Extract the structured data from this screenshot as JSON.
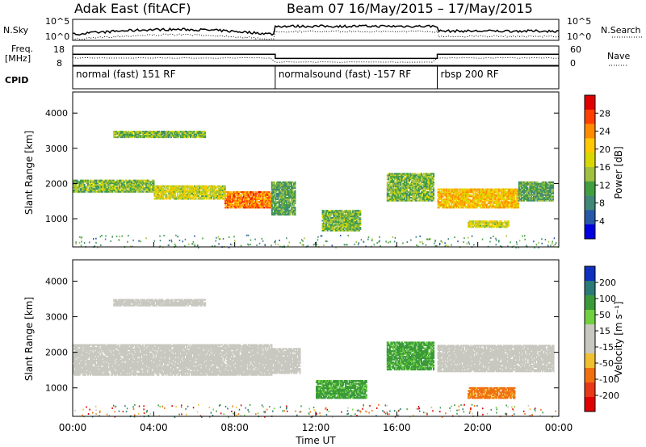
{
  "header": {
    "title_left": "Adak East (fitACF)",
    "title_right": "Beam 07  16/May/2015 – 17/May/2015"
  },
  "strips": {
    "nsky_label": "N.Sky",
    "nsky_ticks": [
      "10^5",
      "10^0"
    ],
    "nsearch_label": "N.Search",
    "nsearch_ticks": [
      "10^5",
      "10^0"
    ],
    "freq_label_line1": "Freq.",
    "freq_label_line2": "[MHz]",
    "freq_ticks": [
      "18",
      "8"
    ],
    "nave_label": "Nave",
    "nave_ticks": [
      "60",
      "0"
    ],
    "cpid_label": "CPID"
  },
  "modes": [
    {
      "label": "normal (fast) 151 RF",
      "start_hour": 0,
      "end_hour": 10
    },
    {
      "label": "normalsound (fast) -157 RF",
      "start_hour": 10,
      "end_hour": 18
    },
    {
      "label": "rbsp 200 RF",
      "start_hour": 18,
      "end_hour": 24
    }
  ],
  "panels": {
    "power": {
      "ylabel": "Slant Range [km]",
      "cbar_label": "Power [dB]",
      "cbar_ticks": [
        "28",
        "24",
        "20",
        "16",
        "12",
        "8",
        "4"
      ],
      "cbar_colors": [
        "#e00000",
        "#ff4000",
        "#ff8c00",
        "#ffc800",
        "#d8d800",
        "#a0c040",
        "#40a040",
        "#408878",
        "#2858a8",
        "#0000e0"
      ]
    },
    "velocity": {
      "ylabel": "Slant Range [km]",
      "cbar_label": "Velocity [m s⁻¹]",
      "cbar_ticks": [
        "200",
        "100",
        "50",
        "15",
        "-15",
        "-50",
        "-100",
        "-200"
      ],
      "cbar_colors": [
        "#1030c0",
        "#2a7a78",
        "#3a9a3a",
        "#70d040",
        "#c8c8c0",
        "#c8c8c0",
        "#f0c030",
        "#f07010",
        "#e83818",
        "#e00000"
      ]
    }
  },
  "xaxis": {
    "label": "Time UT",
    "ticks": [
      "00:00",
      "04:00",
      "08:00",
      "12:00",
      "16:00",
      "20:00",
      "00:00"
    ]
  },
  "chart_data": {
    "type": "heatmap",
    "title": "Adak East (fitACF)  Beam 07  16/May/2015 – 17/May/2015",
    "xlabel": "Time UT",
    "ylabel": "Slant Range [km]",
    "xlim_hours": [
      0,
      24
    ],
    "ylim_km": [
      200,
      4600
    ],
    "y_ticks": [
      1000,
      2000,
      3000,
      4000
    ],
    "freq_mhz_by_mode": [
      {
        "mode": "normal (fast) 151 RF",
        "freq": 14
      },
      {
        "mode": "normalsound (fast) -157 RF",
        "freq": 11
      },
      {
        "mode": "rbsp 200 RF",
        "freq": 14
      }
    ],
    "power_db_range": [
      0,
      30
    ],
    "velocity_range": [
      -200,
      200
    ],
    "power_bands": [
      {
        "t0": 0,
        "t1": 4,
        "r0": 1750,
        "r1": 2100,
        "db": 12
      },
      {
        "t0": 4,
        "t1": 7.5,
        "r0": 1550,
        "r1": 1950,
        "db": 16
      },
      {
        "t0": 7.5,
        "t1": 9.8,
        "r0": 1300,
        "r1": 1750,
        "db": 24
      },
      {
        "t0": 9.8,
        "t1": 11,
        "r0": 1100,
        "r1": 2050,
        "db": 10
      },
      {
        "t0": 12.3,
        "t1": 14.2,
        "r0": 650,
        "r1": 1250,
        "db": 12
      },
      {
        "t0": 15.5,
        "t1": 17.8,
        "r0": 1500,
        "r1": 2300,
        "db": 12
      },
      {
        "t0": 18,
        "t1": 22,
        "r0": 1300,
        "r1": 1850,
        "db": 20
      },
      {
        "t0": 19.5,
        "t1": 21.5,
        "r0": 750,
        "r1": 950,
        "db": 16
      },
      {
        "t0": 22,
        "t1": 23.7,
        "r0": 1500,
        "r1": 2050,
        "db": 10
      },
      {
        "t0": 2,
        "t1": 6.5,
        "r0": 3300,
        "r1": 3500,
        "db": 12
      }
    ],
    "velocity_bands": [
      {
        "t0": 0,
        "t1": 9.8,
        "r0": 1350,
        "r1": 2200,
        "v": 0
      },
      {
        "t0": 9.8,
        "t1": 11.2,
        "r0": 1400,
        "r1": 2100,
        "v": 0
      },
      {
        "t0": 12,
        "t1": 14.5,
        "r0": 700,
        "r1": 1200,
        "v": 40
      },
      {
        "t0": 15.5,
        "t1": 17.8,
        "r0": 1500,
        "r1": 2300,
        "v": 40
      },
      {
        "t0": 18,
        "t1": 23.7,
        "r0": 1450,
        "r1": 2200,
        "v": 0
      },
      {
        "t0": 19.5,
        "t1": 21.8,
        "r0": 700,
        "r1": 1000,
        "v": -60
      },
      {
        "t0": 2,
        "t1": 6.5,
        "r0": 3300,
        "r1": 3500,
        "v": 0
      }
    ]
  }
}
